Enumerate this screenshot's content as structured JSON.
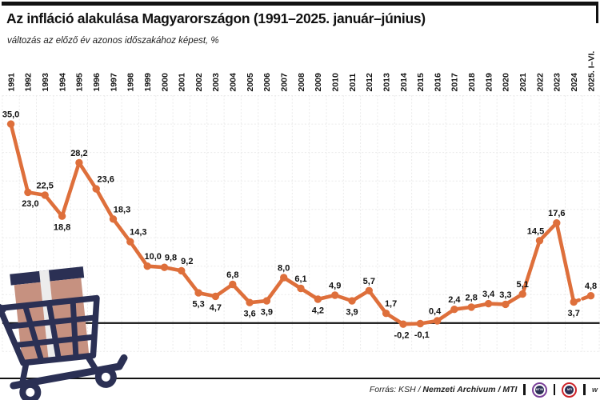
{
  "chart_data": {
    "type": "line",
    "title": "Az infláció alakulása Magyarországon (1991–2025. január–június)",
    "subtitle": "változás az előző év azonos időszakához képest, %",
    "x": [
      "1991",
      "1992",
      "1993",
      "1994",
      "1995",
      "1996",
      "1997",
      "1998",
      "1999",
      "2000",
      "2001",
      "2002",
      "2003",
      "2004",
      "2005",
      "2006",
      "2007",
      "2008",
      "2009",
      "2010",
      "2011",
      "2012",
      "2013",
      "2014",
      "2015",
      "2016",
      "2017",
      "2018",
      "2019",
      "2020",
      "2021",
      "2022",
      "2023",
      "2024",
      "2025. I–VI."
    ],
    "values": [
      35.0,
      23.0,
      22.5,
      18.8,
      28.2,
      23.6,
      18.3,
      14.3,
      10.0,
      9.8,
      9.2,
      5.3,
      4.7,
      6.8,
      3.6,
      3.9,
      8.0,
      6.1,
      4.2,
      4.9,
      3.9,
      5.7,
      1.7,
      -0.2,
      -0.1,
      0.4,
      2.4,
      2.8,
      3.4,
      3.3,
      5.1,
      14.5,
      17.6,
      3.7,
      4.8
    ],
    "point_labels": [
      "35,0",
      "23,0",
      "22,5",
      "18,8",
      "28,2",
      "23,6",
      "18,3",
      "14,3",
      "10,0",
      "9,8",
      "9,2",
      "5,3",
      "4,7",
      "6,8",
      "3,6",
      "3,9",
      "8,0",
      "6,1",
      "4,2",
      "4,9",
      "3,9",
      "5,7",
      "1,7",
      "-0,2",
      "-0,1",
      "0,4",
      "2,4",
      "2,8",
      "3,4",
      "3,3",
      "5,1",
      "14,5",
      "17,6",
      "3,7",
      "4,8"
    ],
    "label_positions": [
      "above",
      "below",
      "above",
      "below",
      "above",
      "above",
      "above",
      "above",
      "above",
      "above",
      "above",
      "below",
      "below",
      "above",
      "below",
      "below",
      "above",
      "above",
      "below",
      "above",
      "below",
      "above",
      "above",
      "below",
      "below",
      "above",
      "above",
      "above",
      "above",
      "above",
      "above",
      "above",
      "above",
      "below",
      "above"
    ],
    "label_dx": [
      0,
      3,
      0,
      0,
      0,
      12,
      11,
      10,
      7,
      8,
      7,
      0,
      0,
      0,
      0,
      0,
      0,
      0,
      0,
      0,
      0,
      0,
      6,
      -2,
      2,
      -3,
      0,
      0,
      0,
      0,
      0,
      -5,
      0,
      0,
      0
    ],
    "series_color": "#DE6F3B",
    "last_segment_dashed": true,
    "ylim": [
      -5,
      40
    ],
    "grid_step": 5,
    "grid": true,
    "zero_line": true,
    "legend": "none",
    "decimal_separator": ","
  },
  "footer": {
    "source_label": "Forrás: KSH /",
    "source_bold": "Nemzeti Archívum / MTI",
    "separator": "|",
    "logos": [
      {
        "name": "mtva-logo",
        "text": "MTVA",
        "ring_color": "#7a3f98"
      },
      {
        "name": "mti-logo",
        "text": "MTI",
        "ring_color": "#cc2229"
      }
    ],
    "trailing_text": "w"
  },
  "illustration": {
    "name": "shopping-cart-with-cardboard-box",
    "outline_color": "#2b3054",
    "box_color": "#c69180",
    "tape_color": "#ececec"
  },
  "colors": {
    "accent": "#DE6F3B",
    "ink": "#111111",
    "grid_line": "#eaeaea",
    "frame": "#121212"
  }
}
